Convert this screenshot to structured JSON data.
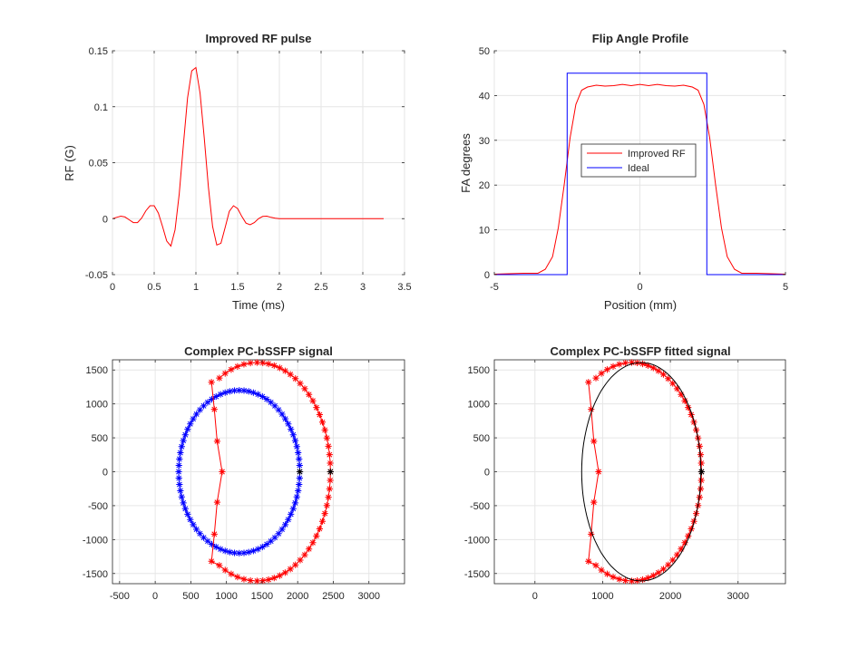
{
  "chart_data": [
    {
      "id": "rf",
      "type": "line",
      "title": "Improved RF pulse",
      "xlabel": "Time (ms)",
      "ylabel": "RF (G)",
      "xlim": [
        0,
        3.5
      ],
      "ylim": [
        -0.05,
        0.15
      ],
      "xticks": [
        0,
        0.5,
        1,
        1.5,
        2,
        2.5,
        3,
        3.5
      ],
      "yticks": [
        -0.05,
        0,
        0.05,
        0.1,
        0.15
      ],
      "xtick_labels": [
        "0",
        "0.5",
        "1",
        "1.5",
        "2",
        "2.5",
        "3",
        "3.5"
      ],
      "ytick_labels": [
        "-0.05",
        "0",
        "0.05",
        "0.1",
        "0.15"
      ],
      "grid": true,
      "series": [
        {
          "color": "#ff0000",
          "x": [
            0,
            0.05,
            0.1,
            0.15,
            0.2,
            0.25,
            0.3,
            0.35,
            0.4,
            0.45,
            0.5,
            0.55,
            0.6,
            0.65,
            0.7,
            0.75,
            0.8,
            0.85,
            0.9,
            0.95,
            1.0,
            1.05,
            1.1,
            1.15,
            1.2,
            1.25,
            1.3,
            1.35,
            1.4,
            1.45,
            1.5,
            1.55,
            1.6,
            1.65,
            1.7,
            1.75,
            1.8,
            1.85,
            1.9,
            1.95,
            2.0,
            2.05,
            2.1,
            2.15,
            2.2,
            2.25,
            3.25
          ],
          "y": [
            0.0,
            0.0012,
            0.0022,
            0.0015,
            -0.001,
            -0.0035,
            -0.0035,
            0.0005,
            0.007,
            0.0115,
            0.0115,
            0.005,
            -0.007,
            -0.02,
            -0.0245,
            -0.01,
            0.022,
            0.066,
            0.108,
            0.132,
            0.135,
            0.112,
            0.072,
            0.028,
            -0.007,
            -0.0235,
            -0.022,
            -0.008,
            0.0065,
            0.0115,
            0.009,
            0.002,
            -0.004,
            -0.0055,
            -0.0035,
            0.0,
            0.002,
            0.0022,
            0.0012,
            0.0004,
            0.0,
            0.0,
            0.0,
            0.0,
            0.0,
            0.0,
            0.0
          ]
        }
      ]
    },
    {
      "id": "fa",
      "type": "line",
      "title": "Flip Angle Profile",
      "xlabel": "Position (mm)",
      "ylabel": "FA degrees",
      "xlim": [
        -5,
        5
      ],
      "ylim": [
        0,
        50
      ],
      "xticks": [
        -5,
        0,
        5
      ],
      "yticks": [
        0,
        10,
        20,
        30,
        40,
        50
      ],
      "xtick_labels": [
        "-5",
        "0",
        "5"
      ],
      "ytick_labels": [
        "0",
        "10",
        "20",
        "30",
        "40",
        "50"
      ],
      "grid": true,
      "legend": {
        "placement": "center-left",
        "entries": [
          "Improved RF",
          "Ideal"
        ]
      },
      "series": [
        {
          "name": "Improved RF",
          "color": "#ff0000",
          "x": [
            -5,
            -4.5,
            -4.0,
            -3.5,
            -3.25,
            -3.0,
            -2.8,
            -2.6,
            -2.4,
            -2.2,
            -2.0,
            -1.8,
            -1.5,
            -1.2,
            -0.9,
            -0.6,
            -0.3,
            0.0,
            0.3,
            0.6,
            0.9,
            1.2,
            1.5,
            1.8,
            2.0,
            2.2,
            2.4,
            2.6,
            2.8,
            3.0,
            3.25,
            3.5,
            4.0,
            4.5,
            5
          ],
          "y": [
            0.1,
            0.2,
            0.3,
            0.3,
            1.2,
            4,
            10.5,
            20,
            30.5,
            38,
            41.2,
            41.9,
            42.3,
            42.1,
            42.2,
            42.5,
            42.2,
            42.5,
            42.2,
            42.5,
            42.2,
            42.1,
            42.3,
            41.9,
            41.2,
            38,
            30.5,
            20,
            10.5,
            4,
            1.2,
            0.3,
            0.3,
            0.2,
            0.1
          ]
        },
        {
          "name": "Ideal",
          "color": "#0000ff",
          "x": [
            -5,
            -2.5,
            -2.5,
            2.3,
            2.3,
            5
          ],
          "y": [
            0,
            0,
            45,
            45,
            0,
            0
          ]
        }
      ]
    },
    {
      "id": "sig",
      "type": "scatter",
      "title": "Complex PC-bSSFP signal",
      "xlabel": "",
      "ylabel": "",
      "xlim": [
        -600,
        3500
      ],
      "ylim": [
        -1650,
        1650
      ],
      "xticks": [
        -500,
        0,
        500,
        1000,
        1500,
        2000,
        2500,
        3000
      ],
      "yticks": [
        -1500,
        -1000,
        -500,
        0,
        500,
        1000,
        1500
      ],
      "xtick_labels": [
        "-500",
        "0",
        "500",
        "1000",
        "1500",
        "2000",
        "2500",
        "3000"
      ],
      "ytick_labels": [
        "-1500",
        "-1000",
        "-500",
        "0",
        "500",
        "1000",
        "1500"
      ],
      "grid": true,
      "series": [
        {
          "color": "#0000ff",
          "marker": "*",
          "shape": "ellipse",
          "center": [
            1180,
            0
          ],
          "radii": [
            850,
            1200
          ],
          "points": 80
        },
        {
          "color": "#ff0000",
          "marker": "*",
          "shape": "ellipse-notch",
          "center": [
            1430,
            0
          ],
          "radii": [
            1030,
            1610
          ],
          "notch": {
            "x_at_zero": 940,
            "points": [
              [
                790,
                1320
              ],
              [
                830,
                920
              ],
              [
                870,
                450
              ],
              [
                940,
                0
              ],
              [
                870,
                -450
              ],
              [
                830,
                -920
              ],
              [
                790,
                -1320
              ]
            ]
          },
          "points": 80
        },
        {
          "color": "#000000",
          "marker": "*",
          "x": [
            2030,
            2460
          ],
          "y": [
            0,
            0
          ]
        }
      ]
    },
    {
      "id": "fit",
      "type": "scatter",
      "title": "Complex PC-bSSFP fitted signal",
      "xlabel": "",
      "ylabel": "",
      "xlim": [
        -600,
        3700
      ],
      "ylim": [
        -1650,
        1650
      ],
      "xticks": [
        0,
        1000,
        2000,
        3000
      ],
      "yticks": [
        -1500,
        -1000,
        -500,
        0,
        500,
        1000,
        1500
      ],
      "xtick_labels": [
        "0",
        "1000",
        "2000",
        "3000"
      ],
      "ytick_labels": [
        "-1500",
        "-1000",
        "-500",
        "0",
        "500",
        "1000",
        "1500"
      ],
      "grid": true,
      "series": [
        {
          "color": "#ff0000",
          "marker": "*",
          "shape": "ellipse-notch",
          "center": [
            1430,
            0
          ],
          "radii": [
            1030,
            1610
          ],
          "notch": {
            "x_at_zero": 940,
            "points": [
              [
                790,
                1320
              ],
              [
                830,
                920
              ],
              [
                870,
                450
              ],
              [
                940,
                0
              ],
              [
                870,
                -450
              ],
              [
                830,
                -920
              ],
              [
                790,
                -1320
              ]
            ]
          },
          "points": 80
        },
        {
          "color": "#000000",
          "line": "solid",
          "shape": "fitted-ellipse",
          "center": [
            1570,
            0
          ],
          "radii": [
            880,
            1610
          ]
        },
        {
          "color": "#000000",
          "marker": "*",
          "x": [
            2460
          ],
          "y": [
            0
          ]
        }
      ]
    }
  ]
}
